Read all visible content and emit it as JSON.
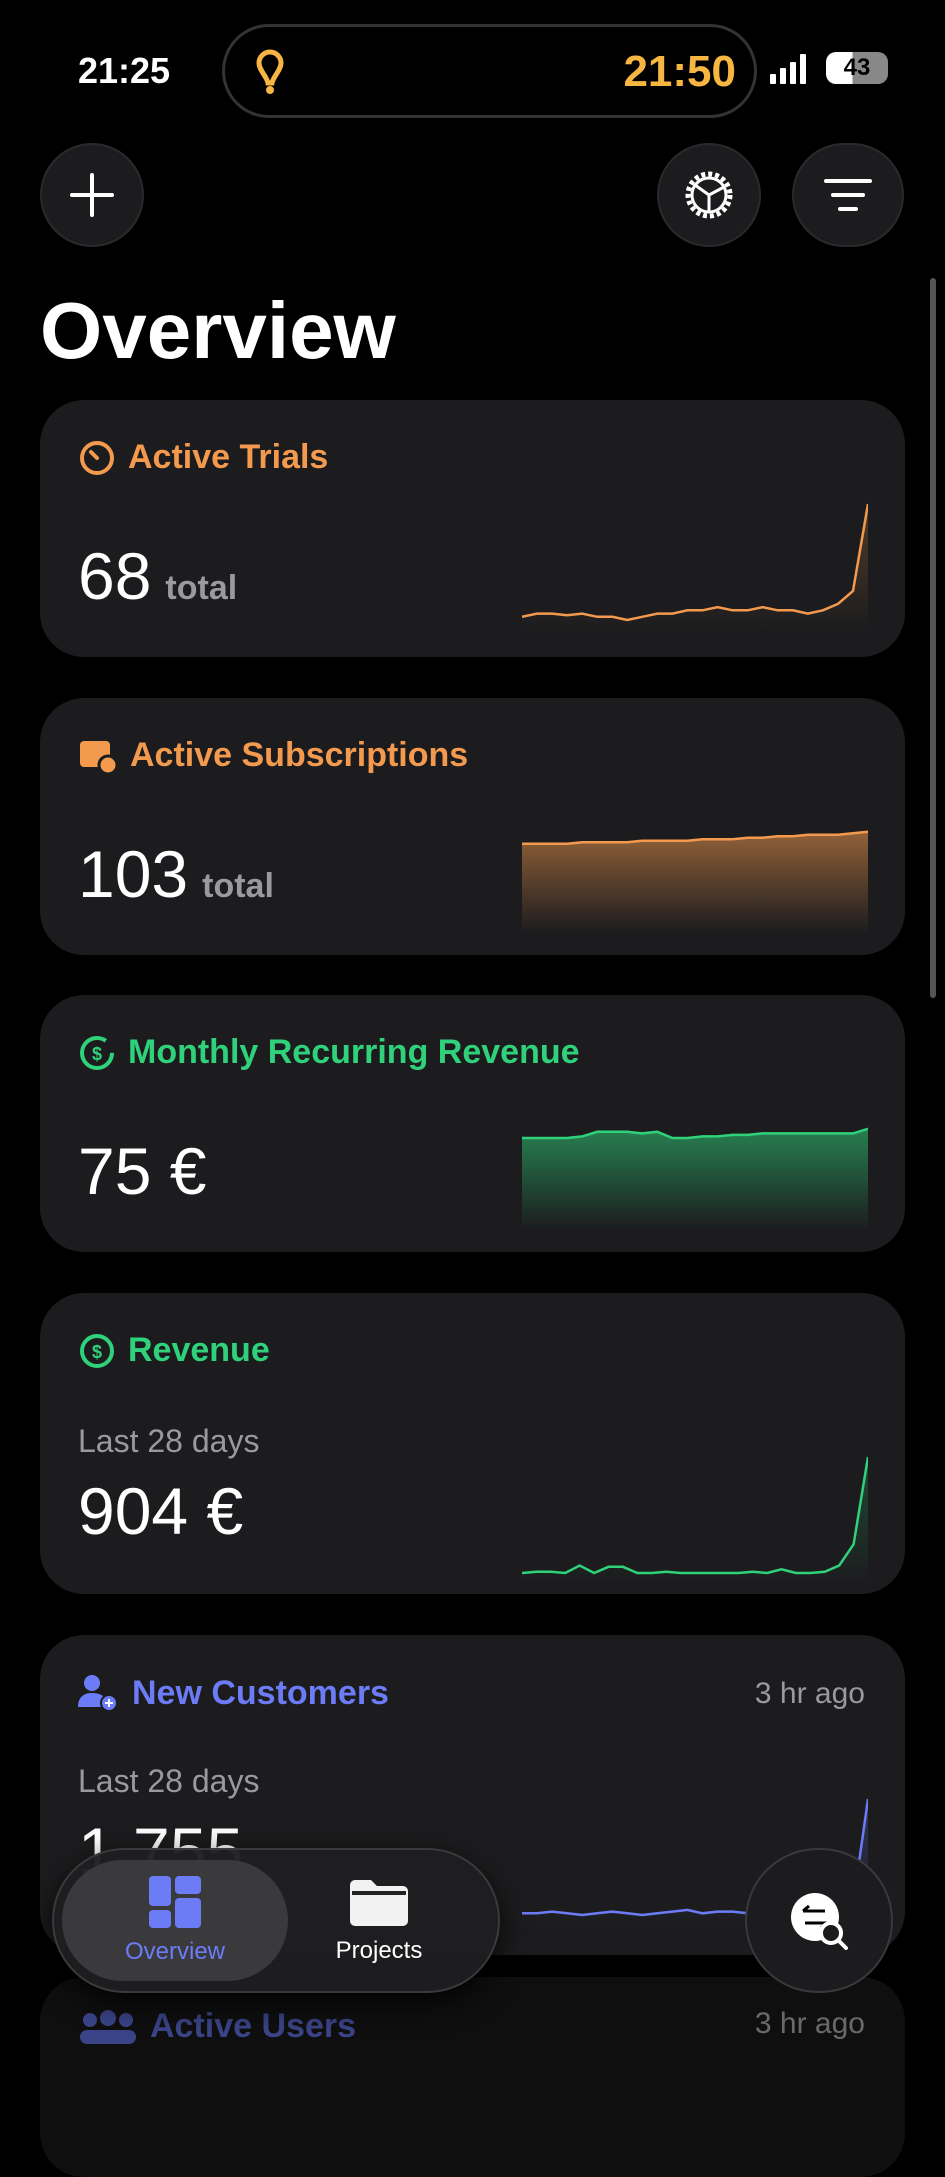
{
  "status": {
    "time": "21:25",
    "activity_time": "21:50",
    "battery": "43"
  },
  "page": {
    "title": "Overview"
  },
  "colors": {
    "orange": "#f39a4e",
    "green": "#2fd27a",
    "blue": "#6b7cf6",
    "activity": "#f7b542"
  },
  "cards": [
    {
      "title": "Active Trials",
      "icon": "timer-icon",
      "value": "68",
      "unit": "total",
      "color": "#f39a4e",
      "spark": [
        3,
        4,
        4,
        3.5,
        4,
        3,
        3,
        2,
        3,
        4,
        4,
        5,
        5,
        6,
        5,
        5,
        6,
        5,
        5,
        4,
        5,
        7,
        11,
        38
      ],
      "fill": false
    },
    {
      "title": "Active Subscriptions",
      "icon": "calendar-clock-icon",
      "value": "103",
      "unit": "total",
      "color": "#f39a4e",
      "spark": [
        88,
        88,
        88,
        88,
        89,
        89,
        89,
        89,
        90,
        90,
        90,
        90,
        91,
        91,
        91,
        92,
        92,
        93,
        93,
        94,
        94,
        94,
        95,
        96
      ],
      "fill": true
    },
    {
      "title": "Monthly Recurring Revenue",
      "icon": "recurring-dollar-icon",
      "value": "75 €",
      "color": "#2fd27a",
      "spark": [
        70,
        70,
        70,
        70,
        71,
        74,
        74,
        74,
        73,
        74,
        70,
        70,
        71,
        71,
        72,
        72,
        73,
        73,
        73,
        73,
        73,
        73,
        73,
        76
      ],
      "fill": true
    },
    {
      "title": "Revenue",
      "icon": "dollar-circle-icon",
      "subtitle": "Last 28 days",
      "value": "904 €",
      "color": "#2fd27a",
      "spark": [
        2,
        3,
        3,
        2,
        8,
        2,
        7,
        7,
        2,
        2,
        3,
        2,
        2,
        2,
        2,
        2,
        3,
        2,
        5,
        2,
        2,
        3,
        8,
        25,
        95
      ],
      "fill": false
    },
    {
      "title": "New Customers",
      "icon": "person-add-icon",
      "ago": "3 hr ago",
      "subtitle": "Last 28 days",
      "value": "1 755",
      "color": "#6b7cf6",
      "spark": [
        3,
        3,
        4,
        3,
        2,
        3,
        4,
        3,
        2,
        3,
        4,
        5,
        3,
        4,
        4,
        3,
        4,
        3,
        4,
        4,
        3,
        5,
        8,
        70
      ],
      "fill": false
    }
  ],
  "next_card": {
    "title": "Active Users",
    "ago": "3 hr ago"
  },
  "tabs": [
    {
      "label": "Overview",
      "icon": "dashboard-icon",
      "active": true
    },
    {
      "label": "Projects",
      "icon": "folder-icon",
      "active": false
    }
  ],
  "fab": {
    "icon": "switch-search-icon"
  }
}
